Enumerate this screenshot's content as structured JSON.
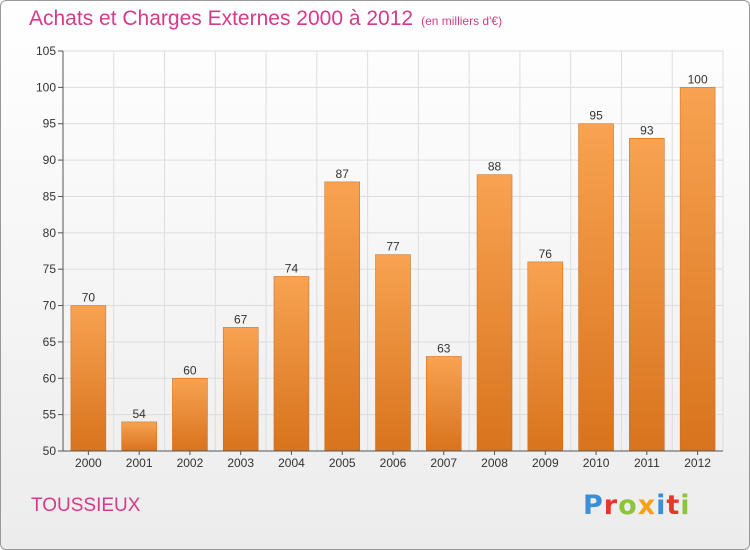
{
  "title": "Achats et Charges Externes 2000 à 2012",
  "subtitle": "(en milliers d'€)",
  "commune": "TOUSSIEUX",
  "logo": {
    "letters": [
      {
        "char": "P",
        "color": "#3a8fd6"
      },
      {
        "char": "r",
        "color": "#e8362c"
      },
      {
        "char": "o",
        "color": "#8cc43c"
      },
      {
        "char": "x",
        "color": "#f5a21b"
      },
      {
        "char": "i",
        "color": "#3a8fd6"
      },
      {
        "char": "t",
        "color": "#e8362c"
      },
      {
        "char": "i",
        "color": "#8cc43c"
      }
    ]
  },
  "colors": {
    "accent": "#d63a8a",
    "bar_top": "#f7a351",
    "bar_bottom": "#d9731d",
    "axis": "#555555",
    "grid": "#dddddd"
  },
  "chart_data": {
    "type": "bar",
    "categories": [
      "2000",
      "2001",
      "2002",
      "2003",
      "2004",
      "2005",
      "2006",
      "2007",
      "2008",
      "2009",
      "2010",
      "2011",
      "2012"
    ],
    "values": [
      70,
      54,
      60,
      67,
      74,
      87,
      77,
      63,
      88,
      76,
      95,
      93,
      100
    ],
    "ylim": [
      50,
      105
    ],
    "yticks": [
      50,
      55,
      60,
      65,
      70,
      75,
      80,
      85,
      90,
      95,
      100,
      105
    ],
    "grid": true,
    "data_labels": true
  }
}
